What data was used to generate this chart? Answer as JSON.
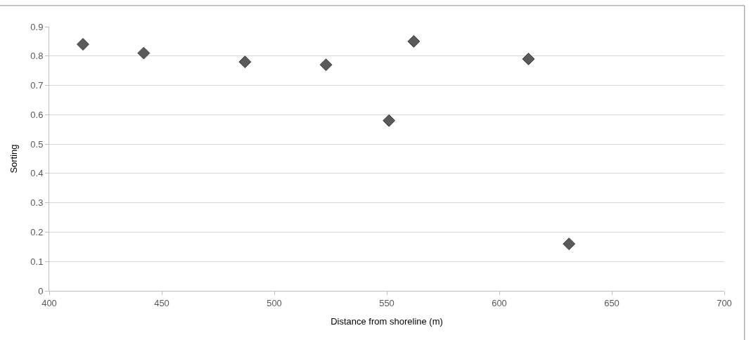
{
  "chart_data": {
    "type": "scatter",
    "xlabel": "Distance from shoreline (m)",
    "ylabel": "Sorting",
    "x": [
      415,
      442,
      487,
      523,
      551,
      562,
      613,
      631
    ],
    "series": [
      {
        "color": "#5a5a5a",
        "values": [
          0.84,
          0.81,
          0.78,
          0.77,
          0.58,
          0.85,
          0.79,
          0.16
        ]
      }
    ],
    "xlim": [
      400,
      700
    ],
    "xticks": [
      400,
      450,
      500,
      550,
      600,
      650,
      700
    ],
    "ylim": [
      0,
      0.9
    ],
    "yticks": [
      0,
      0.1,
      0.2,
      0.3,
      0.4,
      0.5,
      0.6,
      0.7,
      0.8,
      0.9
    ],
    "grid": "y",
    "marker": "diamond"
  }
}
